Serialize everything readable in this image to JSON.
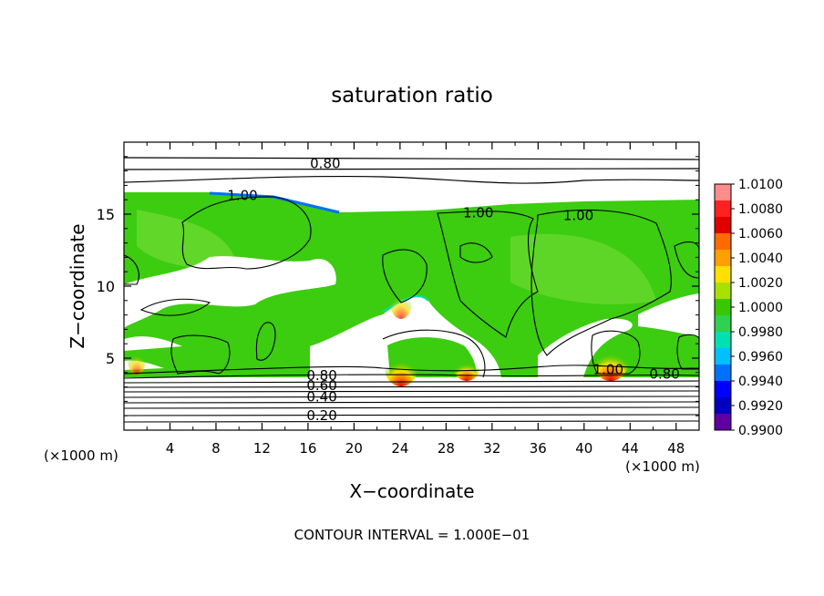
{
  "chart_data": {
    "type": "heatmap",
    "title": "saturation ratio",
    "xlabel": "X−coordinate",
    "ylabel": "Z−coordinate",
    "x_unit_left": "(×1000 m)",
    "x_unit_right": "(×1000 m)",
    "xlim": [
      0,
      50
    ],
    "ylim": [
      0,
      20
    ],
    "x_ticks": [
      4,
      8,
      12,
      16,
      20,
      24,
      28,
      32,
      36,
      40,
      44,
      48
    ],
    "y_ticks": [
      5,
      10,
      15
    ],
    "colorbar": {
      "labels": [
        "1.0100",
        "1.0080",
        "1.0060",
        "1.0040",
        "1.0020",
        "1.0000",
        "0.9980",
        "0.9960",
        "0.9940",
        "0.9920",
        "0.9900"
      ],
      "colors": [
        "#ff8c8c",
        "#ff2020",
        "#e00000",
        "#ff6a00",
        "#ffa000",
        "#ffe000",
        "#a8e000",
        "#38c800",
        "#30d050",
        "#00e0b0",
        "#00c0ff",
        "#0070ff",
        "#0000ff",
        "#0000c0",
        "#6000a0"
      ]
    },
    "contour_labels": [
      {
        "text": "0.80",
        "x": 17.5,
        "z": 18.5
      },
      {
        "text": "1.00",
        "x": 10.3,
        "z": 16.3
      },
      {
        "text": "1.00",
        "x": 30.8,
        "z": 15.1
      },
      {
        "text": "1.00",
        "x": 39.5,
        "z": 14.9
      },
      {
        "text": "0.80",
        "x": 17.2,
        "z": 3.8
      },
      {
        "text": "0.60",
        "x": 17.2,
        "z": 3.1
      },
      {
        "text": "0.40",
        "x": 17.2,
        "z": 2.3
      },
      {
        "text": "0.20",
        "x": 17.2,
        "z": 1.0
      },
      {
        "text": "1.00",
        "x": 42.1,
        "z": 4.2
      },
      {
        "text": "0.80",
        "x": 47.0,
        "z": 3.9
      }
    ],
    "contour_interval_text": "CONTOUR INTERVAL = 1.000E−01"
  }
}
